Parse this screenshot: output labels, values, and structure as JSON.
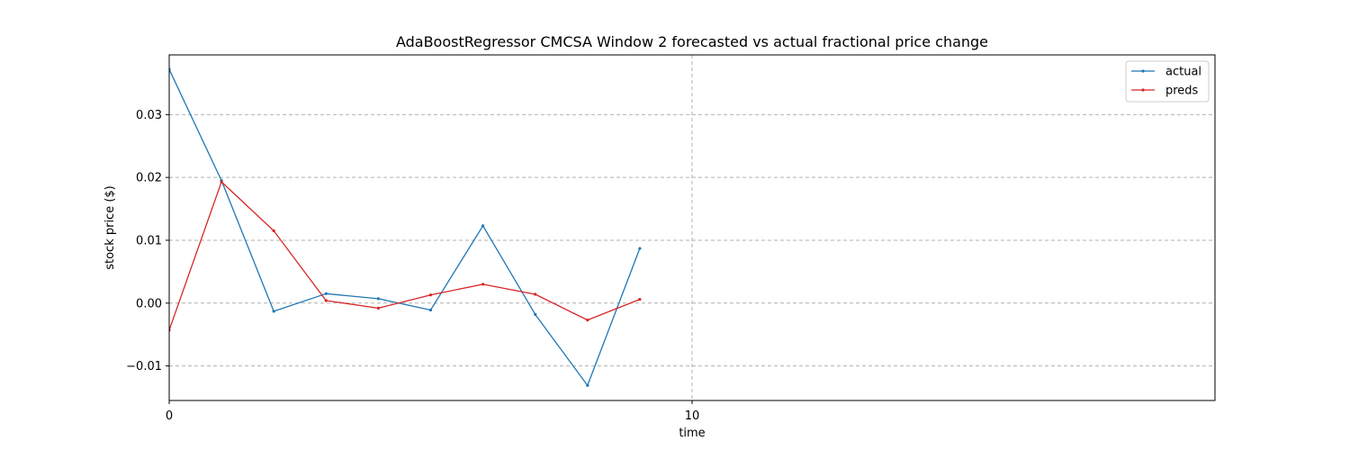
{
  "chart_data": {
    "type": "line",
    "title": "AdaBoostRegressor CMCSA Window 2 forecasted vs actual fractional price change",
    "xlabel": "time",
    "ylabel": "stock price ($)",
    "xlim": [
      0,
      20
    ],
    "ylim": [
      -0.0155,
      0.0395
    ],
    "x_ticks": [
      0,
      10
    ],
    "x_tick_labels": [
      "0",
      "10"
    ],
    "y_ticks": [
      -0.01,
      0.0,
      0.01,
      0.02,
      0.03
    ],
    "y_tick_labels": [
      "−0.01",
      "0.00",
      "0.01",
      "0.02",
      "0.03"
    ],
    "grid": true,
    "legend_position": "upper right",
    "x": [
      0,
      1,
      2,
      3,
      4,
      5,
      6,
      7,
      8,
      9
    ],
    "series": [
      {
        "name": "actual",
        "color": "#1f77b4",
        "values": [
          0.0372,
          0.0195,
          -0.0013,
          0.0015,
          0.0007,
          -0.0011,
          0.0123,
          -0.0018,
          -0.0131,
          0.0087
        ]
      },
      {
        "name": "preds",
        "color": "#d62728",
        "values": [
          -0.0043,
          0.0193,
          0.0115,
          0.0004,
          -0.0008,
          0.0013,
          0.003,
          0.0014,
          -0.0027,
          0.0006
        ]
      }
    ]
  }
}
